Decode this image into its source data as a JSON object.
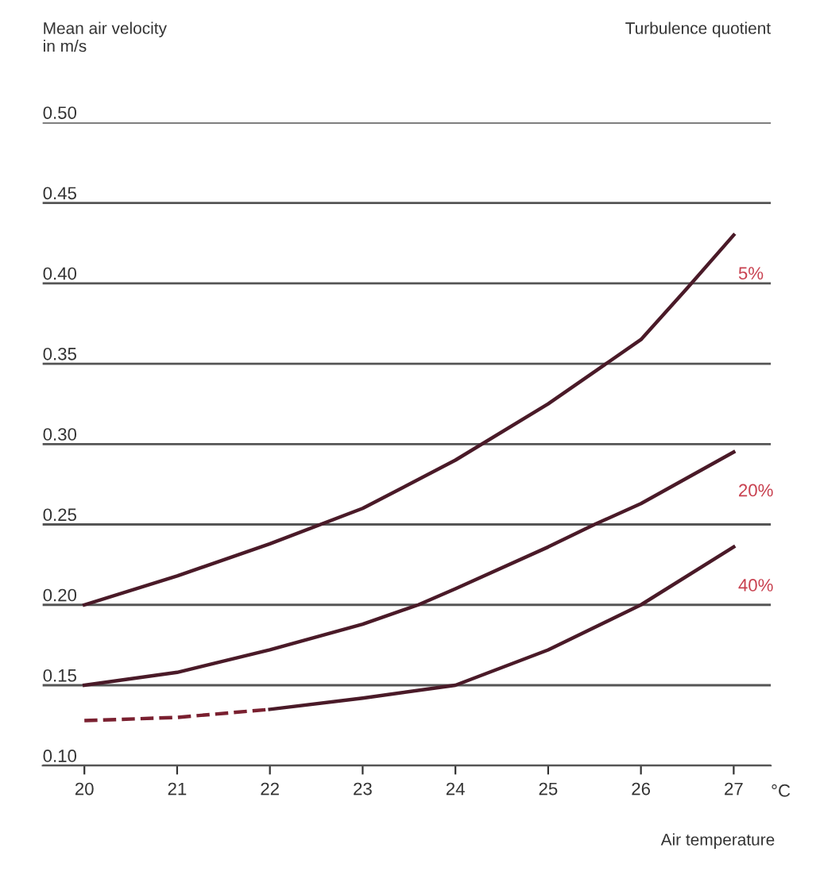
{
  "chart_data": {
    "type": "line",
    "ylabel": "Mean air velocity\nin m/s",
    "legend_title": "Turbulence quotient",
    "xlabel": "Air temperature",
    "annotations": [
      "°C"
    ],
    "xlim": [
      19.55,
      27.4
    ],
    "xticks": [
      20,
      21,
      22,
      23,
      24,
      25,
      26,
      27
    ],
    "ylim": [
      0.1,
      0.5
    ],
    "yticks": [
      {
        "value": 0.1,
        "label": "0.10"
      },
      0.15,
      {
        "value": 0.2,
        "label": "0.20"
      },
      0.25,
      {
        "value": 0.3,
        "label": "0.30"
      },
      0.35,
      {
        "value": 0.4,
        "label": "0.40"
      },
      0.45,
      {
        "value": 0.5,
        "label": "0.50"
      }
    ],
    "grid": "y",
    "series": [
      {
        "name": "5%",
        "color": "#4a1a28",
        "line_style": "solid",
        "x": [
          20,
          21,
          22,
          23,
          24,
          25,
          26,
          26.5,
          27
        ],
        "values": [
          0.2,
          0.218,
          0.238,
          0.26,
          0.29,
          0.325,
          0.365,
          0.397,
          0.43
        ]
      },
      {
        "name": "20%",
        "color": "#4a1a28",
        "line_style": "solid",
        "x": [
          20,
          21,
          22,
          23,
          23.6,
          24,
          25,
          25.5,
          26,
          27
        ],
        "values": [
          0.15,
          0.158,
          0.172,
          0.188,
          0.2,
          0.21,
          0.236,
          0.25,
          0.263,
          0.295
        ]
      },
      {
        "name": "40%",
        "color": "#4a1a28",
        "line_style": "solid",
        "x": [
          22,
          23,
          24,
          25,
          26,
          27
        ],
        "values": [
          0.135,
          0.142,
          0.15,
          0.172,
          0.2,
          0.236
        ]
      },
      {
        "color": "#7a2030",
        "line_style": "dashed",
        "x": [
          20,
          21,
          22
        ],
        "values": [
          0.128,
          0.13,
          0.135
        ]
      }
    ]
  }
}
